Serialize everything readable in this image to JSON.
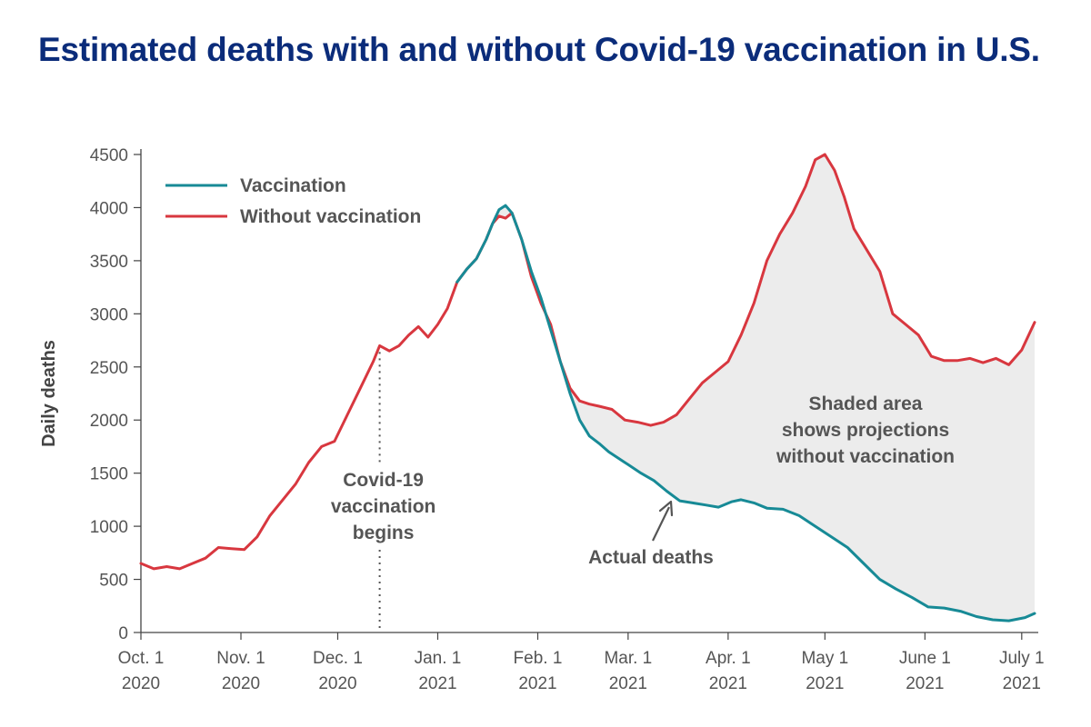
{
  "page": {
    "title": "Estimated deaths with and without Covid-19 vaccination in U.S."
  },
  "chart_data": {
    "type": "line",
    "title": "Estimated deaths with and without Covid-19 vaccination in U.S.",
    "xlabel": "",
    "ylabel": "Daily deaths",
    "ylim": [
      0,
      4500
    ],
    "yticks": [
      0,
      500,
      1000,
      1500,
      2000,
      2500,
      3000,
      3500,
      4000,
      4500
    ],
    "xticks": [
      {
        "date": "2020-10-01",
        "line1": "Oct. 1",
        "line2": "2020"
      },
      {
        "date": "2020-11-01",
        "line1": "Nov. 1",
        "line2": "2020"
      },
      {
        "date": "2020-12-01",
        "line1": "Dec. 1",
        "line2": "2020"
      },
      {
        "date": "2021-01-01",
        "line1": "Jan. 1",
        "line2": "2021"
      },
      {
        "date": "2021-02-01",
        "line1": "Feb. 1",
        "line2": "2021"
      },
      {
        "date": "2021-03-01",
        "line1": "Mar. 1",
        "line2": "2021"
      },
      {
        "date": "2021-04-01",
        "line1": "Apr. 1",
        "line2": "2021"
      },
      {
        "date": "2021-05-01",
        "line1": "May 1",
        "line2": "2021"
      },
      {
        "date": "2021-06-01",
        "line1": "June 1",
        "line2": "2021"
      },
      {
        "date": "2021-07-01",
        "line1": "July 1",
        "line2": "2021"
      }
    ],
    "grid": false,
    "legend_position": "top-left",
    "series": [
      {
        "name": "Vaccination",
        "color": "#178a96",
        "x": [
          "2021-01-07",
          "2021-01-10",
          "2021-01-13",
          "2021-01-16",
          "2021-01-18",
          "2021-01-20",
          "2021-01-22",
          "2021-01-24",
          "2021-01-27",
          "2021-01-30",
          "2021-02-02",
          "2021-02-05",
          "2021-02-08",
          "2021-02-11",
          "2021-02-14",
          "2021-02-17",
          "2021-02-20",
          "2021-02-23",
          "2021-02-26",
          "2021-03-01",
          "2021-03-05",
          "2021-03-09",
          "2021-03-13",
          "2021-03-17",
          "2021-03-21",
          "2021-03-25",
          "2021-03-29",
          "2021-04-02",
          "2021-04-05",
          "2021-04-09",
          "2021-04-13",
          "2021-04-18",
          "2021-04-23",
          "2021-04-28",
          "2021-05-03",
          "2021-05-08",
          "2021-05-13",
          "2021-05-18",
          "2021-05-23",
          "2021-05-28",
          "2021-06-02",
          "2021-06-07",
          "2021-06-12",
          "2021-06-17",
          "2021-06-22",
          "2021-06-27",
          "2021-07-02",
          "2021-07-05"
        ],
        "y": [
          3300,
          3420,
          3520,
          3700,
          3850,
          3980,
          4020,
          3950,
          3700,
          3400,
          3150,
          2850,
          2550,
          2250,
          2000,
          1850,
          1780,
          1700,
          1640,
          1580,
          1500,
          1430,
          1330,
          1240,
          1220,
          1200,
          1180,
          1230,
          1250,
          1220,
          1170,
          1160,
          1100,
          1000,
          900,
          800,
          650,
          500,
          410,
          330,
          240,
          230,
          200,
          150,
          120,
          110,
          140,
          180
        ]
      },
      {
        "name": "Without vaccination",
        "color": "#d8373f",
        "x": [
          "2020-10-01",
          "2020-10-05",
          "2020-10-09",
          "2020-10-13",
          "2020-10-17",
          "2020-10-21",
          "2020-10-25",
          "2020-10-29",
          "2020-11-02",
          "2020-11-06",
          "2020-11-10",
          "2020-11-14",
          "2020-11-18",
          "2020-11-22",
          "2020-11-26",
          "2020-11-30",
          "2020-12-04",
          "2020-12-08",
          "2020-12-12",
          "2020-12-14",
          "2020-12-17",
          "2020-12-20",
          "2020-12-23",
          "2020-12-26",
          "2020-12-29",
          "2021-01-01",
          "2021-01-04",
          "2021-01-07",
          "2021-01-10",
          "2021-01-13",
          "2021-01-16",
          "2021-01-18",
          "2021-01-20",
          "2021-01-22",
          "2021-01-24",
          "2021-01-27",
          "2021-01-30",
          "2021-02-02",
          "2021-02-05",
          "2021-02-08",
          "2021-02-11",
          "2021-02-14",
          "2021-02-17",
          "2021-02-20",
          "2021-02-24",
          "2021-02-28",
          "2021-03-04",
          "2021-03-08",
          "2021-03-12",
          "2021-03-16",
          "2021-03-20",
          "2021-03-24",
          "2021-03-28",
          "2021-04-01",
          "2021-04-05",
          "2021-04-09",
          "2021-04-13",
          "2021-04-17",
          "2021-04-21",
          "2021-04-25",
          "2021-04-28",
          "2021-05-01",
          "2021-05-04",
          "2021-05-07",
          "2021-05-10",
          "2021-05-14",
          "2021-05-18",
          "2021-05-22",
          "2021-05-26",
          "2021-05-30",
          "2021-06-03",
          "2021-06-07",
          "2021-06-11",
          "2021-06-15",
          "2021-06-19",
          "2021-06-23",
          "2021-06-27",
          "2021-07-01",
          "2021-07-05"
        ],
        "y": [
          650,
          600,
          620,
          600,
          650,
          700,
          800,
          790,
          780,
          900,
          1100,
          1250,
          1400,
          1600,
          1750,
          1800,
          2050,
          2300,
          2550,
          2700,
          2650,
          2700,
          2800,
          2880,
          2780,
          2900,
          3050,
          3300,
          3420,
          3520,
          3700,
          3850,
          3920,
          3900,
          3950,
          3700,
          3350,
          3100,
          2900,
          2550,
          2300,
          2180,
          2150,
          2130,
          2100,
          2000,
          1980,
          1950,
          1980,
          2050,
          2200,
          2350,
          2450,
          2550,
          2800,
          3100,
          3500,
          3750,
          3950,
          4200,
          4450,
          4500,
          4350,
          4100,
          3800,
          3600,
          3400,
          3000,
          2900,
          2800,
          2600,
          2560,
          2560,
          2580,
          2540,
          2580,
          2520,
          2660,
          2920
        ]
      }
    ],
    "annotations": [
      {
        "id": "vaccination-begins",
        "lines": [
          "Covid-19",
          "vaccination",
          "begins"
        ],
        "date": "2020-12-14"
      },
      {
        "id": "actual-deaths",
        "lines": [
          "Actual deaths"
        ]
      },
      {
        "id": "shaded-area",
        "lines": [
          "Shaded area",
          "shows projections",
          "without vaccination"
        ]
      }
    ]
  }
}
